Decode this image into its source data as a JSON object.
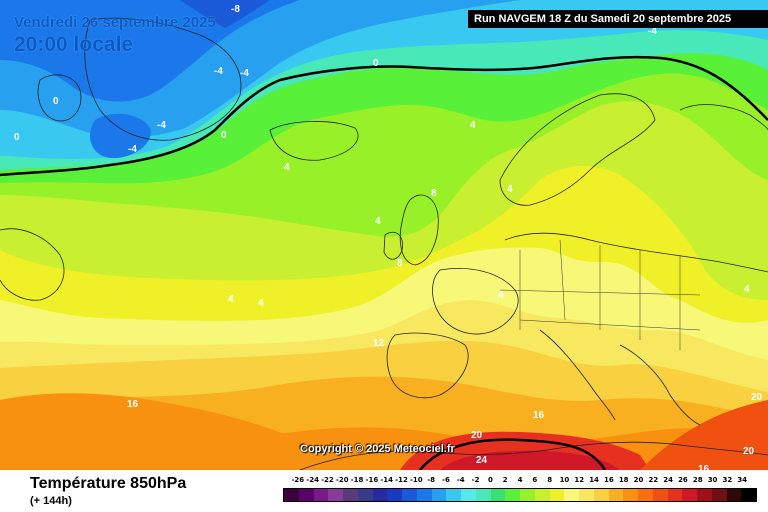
{
  "header": {
    "valid_date": "Vendredi 26 septembre 2025",
    "local_time": "20:00 locale",
    "run_info": "Run NAVGEM 18 Z du Samedi 20 septembre 2025"
  },
  "map": {
    "copyright": "Copyright © 2025 Meteociel.fr",
    "isotherm_labels": [
      "-8",
      "-4",
      "-4",
      "-4",
      "-4",
      "-4",
      "0",
      "0",
      "0",
      "0",
      "4",
      "4",
      "4",
      "4",
      "4",
      "4",
      "4",
      "4",
      "4",
      "8",
      "8",
      "12",
      "16",
      "16",
      "16",
      "20",
      "20",
      "20",
      "24"
    ]
  },
  "footer": {
    "title": "Température 850hPa",
    "subtitle": "(+ 144h)"
  },
  "color_scale": {
    "labels": [
      "-26",
      "-24",
      "-22",
      "-20",
      "-18",
      "-16",
      "-14",
      "-12",
      "-10",
      "-8",
      "-6",
      "-4",
      "-2",
      "0",
      "2",
      "4",
      "6",
      "8",
      "10",
      "12",
      "14",
      "16",
      "18",
      "20",
      "22",
      "24",
      "26",
      "28",
      "30",
      "32",
      "34"
    ],
    "colors": [
      "#3a0040",
      "#5a006a",
      "#7a1a8a",
      "#8a3a9a",
      "#5a3a7a",
      "#3a3a8a",
      "#2a2aa0",
      "#1a3ac0",
      "#1a5ad8",
      "#1a78ea",
      "#28a0f0",
      "#38c8f0",
      "#58e8e8",
      "#48e8b8",
      "#38e070",
      "#58f038",
      "#98f028",
      "#c8f030",
      "#f0f028",
      "#f8f878",
      "#f8e860",
      "#f8d040",
      "#f8b020",
      "#f89010",
      "#f87010",
      "#f05010",
      "#e83020",
      "#d01828",
      "#a01018",
      "#701010",
      "#300808",
      "#000000"
    ]
  }
}
